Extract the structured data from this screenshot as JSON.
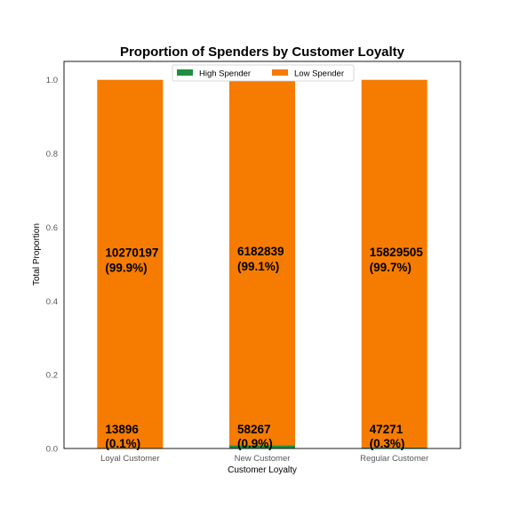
{
  "chart_data": {
    "type": "bar",
    "stacked": true,
    "title": "Proportion of Spenders by Customer Loyalty",
    "xlabel": "Customer Loyalty",
    "ylabel": "Total Proportion",
    "ylim": [
      0,
      1.05
    ],
    "yticks": [
      "0.0",
      "0.2",
      "0.4",
      "0.6",
      "0.8",
      "1.0"
    ],
    "categories": [
      "Loyal Customer",
      "New Customer",
      "Regular Customer"
    ],
    "legend_position": "top-center",
    "grid": false,
    "series": [
      {
        "name": "High Spender",
        "color": "#1e8f3e",
        "values": [
          0.001,
          0.009,
          0.003
        ],
        "counts": [
          "13896",
          "58267",
          "47271"
        ],
        "percent_labels": [
          "(0.1%)",
          "(0.9%)",
          "(0.3%)"
        ]
      },
      {
        "name": "Low Spender",
        "color": "#f57c00",
        "values": [
          0.999,
          0.991,
          0.997
        ],
        "counts": [
          "10270197",
          "6182839",
          "15829505"
        ],
        "percent_labels": [
          "(99.9%)",
          "(99.1%)",
          "(99.7%)"
        ]
      }
    ]
  }
}
